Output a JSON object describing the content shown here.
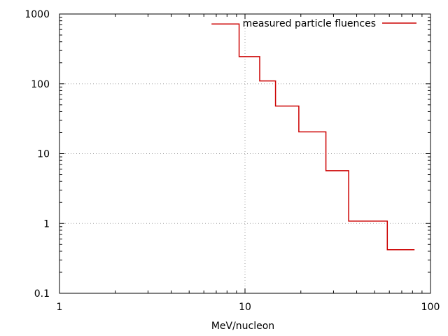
{
  "chart_data": {
    "type": "line",
    "step": true,
    "x_scale": "log",
    "y_scale": "log",
    "xlim": [
      1,
      100
    ],
    "ylim": [
      0.1,
      1000
    ],
    "xlabel": "MeV/nucleon",
    "ylabel": "",
    "title": "",
    "grid": true,
    "legend_position": "top-right",
    "x_ticks": [
      {
        "value": 1,
        "label": "1"
      },
      {
        "value": 10,
        "label": "10"
      },
      {
        "value": 100,
        "label": "100"
      }
    ],
    "y_ticks": [
      {
        "value": 0.1,
        "label": "0.1"
      },
      {
        "value": 1,
        "label": "1"
      },
      {
        "value": 10,
        "label": "10"
      },
      {
        "value": 100,
        "label": "100"
      },
      {
        "value": 1000,
        "label": "1000"
      }
    ],
    "series": [
      {
        "name": "measured particle fluences",
        "color": "#cc0000",
        "bins": [
          {
            "x_start": 6.6,
            "x_end": 9.3,
            "y": 720
          },
          {
            "x_start": 9.3,
            "x_end": 12.0,
            "y": 245
          },
          {
            "x_start": 12.0,
            "x_end": 14.6,
            "y": 110
          },
          {
            "x_start": 14.6,
            "x_end": 19.5,
            "y": 48
          },
          {
            "x_start": 19.5,
            "x_end": 27.3,
            "y": 20.5
          },
          {
            "x_start": 27.3,
            "x_end": 36.2,
            "y": 5.7
          },
          {
            "x_start": 36.2,
            "x_end": 58.5,
            "y": 1.08
          },
          {
            "x_start": 58.5,
            "x_end": 82.0,
            "y": 0.42
          }
        ]
      }
    ]
  }
}
